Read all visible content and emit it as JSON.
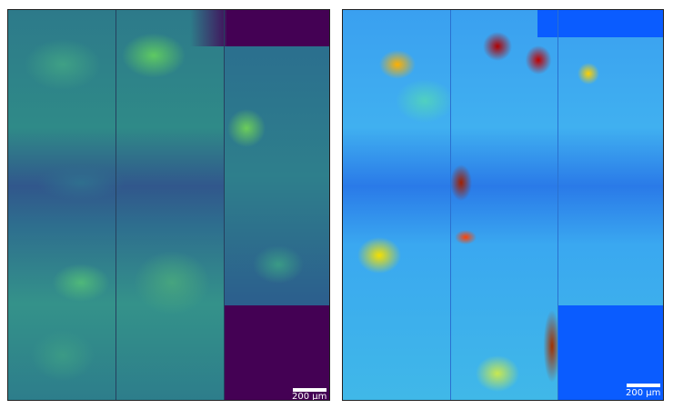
{
  "panels": [
    {
      "name": "viridis-panel",
      "colormap": "viridis",
      "scale_bar_label": "200 µm"
    },
    {
      "name": "jet-panel",
      "colormap": "jet",
      "scale_bar_label": "200 µm"
    }
  ],
  "colors": {
    "viridis_background": "#440154",
    "jet_background": "#0a5cff"
  }
}
